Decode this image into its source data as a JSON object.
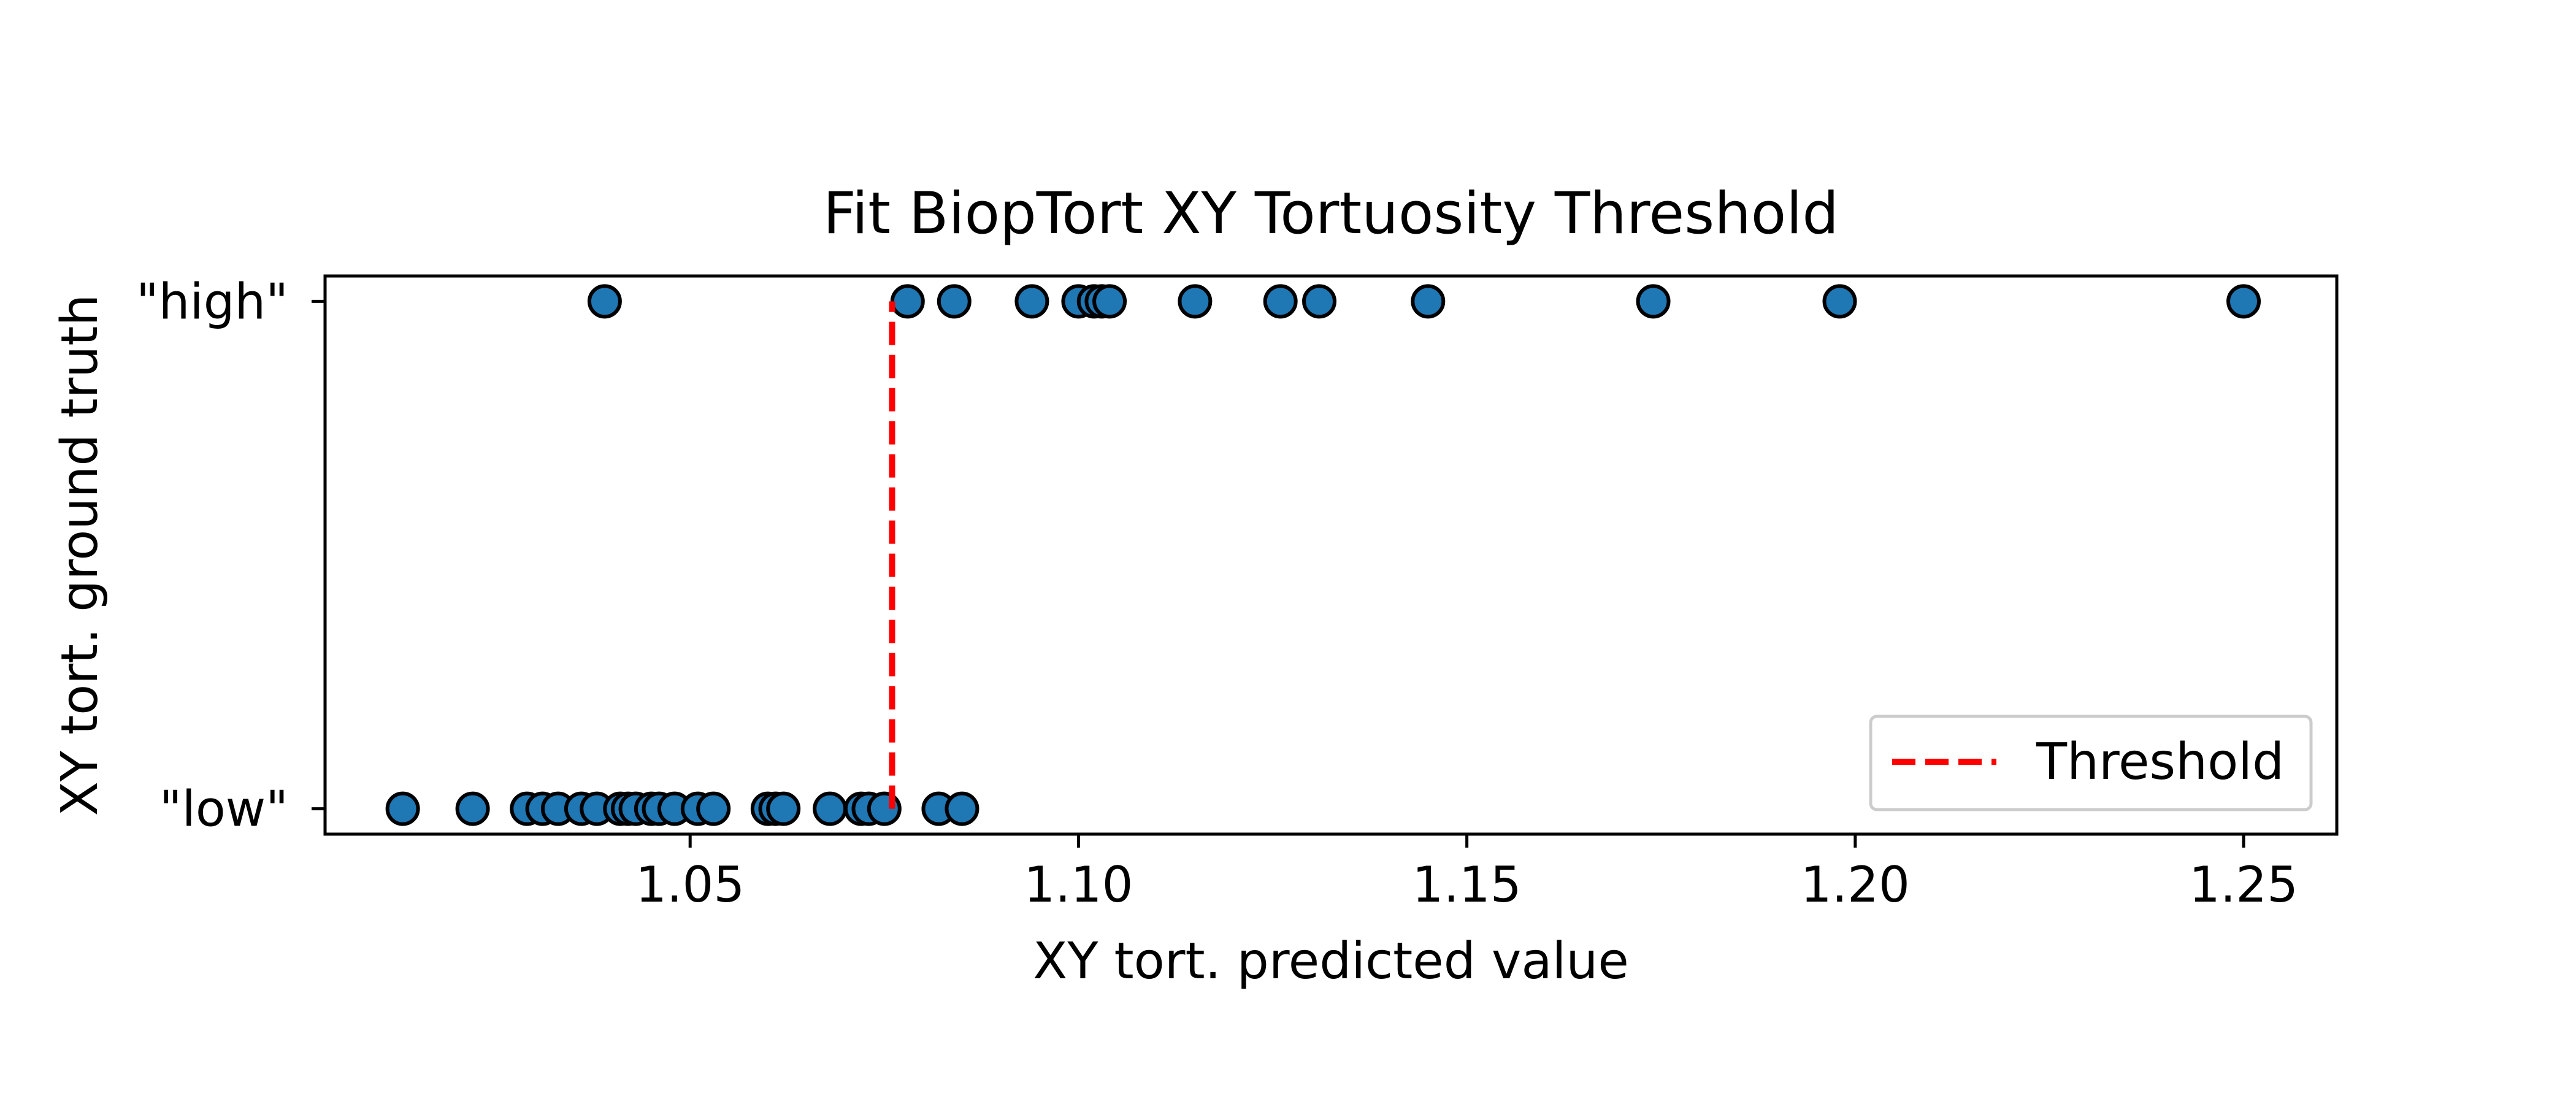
{
  "chart_data": {
    "type": "scatter",
    "title": "Fit BiopTort XY Tortuosity Threshold",
    "xlabel": "XY tort. predicted value",
    "ylabel": "XY tort. ground truth",
    "xlim": [
      1.003,
      1.262
    ],
    "ylim": [
      -0.05,
      1.05
    ],
    "x_ticks": [
      1.05,
      1.1,
      1.15,
      1.2,
      1.25
    ],
    "x_tick_labels": [
      "1.05",
      "1.10",
      "1.15",
      "1.20",
      "1.25"
    ],
    "y_ticks": [
      0,
      1
    ],
    "y_tick_labels": [
      "\"low\"",
      "\"high\""
    ],
    "grid": false,
    "legend_position": "lower-right",
    "point_color": "#1f77b4",
    "point_edge_color": "#000000",
    "series": [
      {
        "y": 0,
        "x": [
          1.013,
          1.022,
          1.029,
          1.031,
          1.033,
          1.036,
          1.038,
          1.041,
          1.042,
          1.043,
          1.045,
          1.046,
          1.048,
          1.051,
          1.053,
          1.06,
          1.061,
          1.062,
          1.068,
          1.072,
          1.073,
          1.075,
          1.082,
          1.085
        ]
      },
      {
        "y": 1,
        "x": [
          1.039,
          1.078,
          1.084,
          1.094,
          1.1,
          1.102,
          1.103,
          1.104,
          1.115,
          1.126,
          1.131,
          1.145,
          1.174,
          1.198,
          1.25
        ]
      }
    ],
    "threshold": {
      "name": "Threshold",
      "x": 1.076,
      "y_range": [
        0,
        1
      ],
      "color": "#ff0000"
    }
  }
}
